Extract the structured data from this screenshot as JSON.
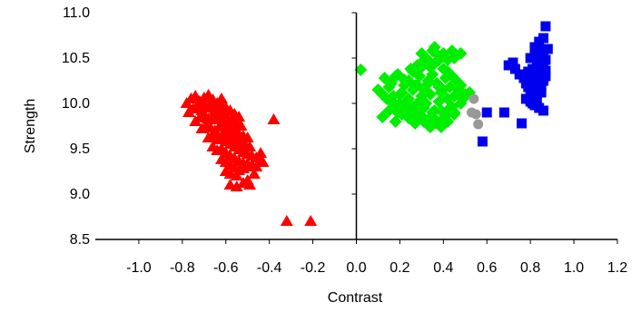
{
  "chart_data": {
    "type": "scatter",
    "title": "",
    "xlabel": "Contrast",
    "ylabel": "Strength",
    "xlim": [
      -1.2,
      1.2
    ],
    "ylim": [
      8.5,
      11.0
    ],
    "x_ticks": [
      -1.0,
      -0.8,
      -0.6,
      -0.4,
      -0.2,
      0.0,
      0.2,
      0.4,
      0.6,
      0.8,
      1.0,
      1.2
    ],
    "x_tick_labels": [
      "-1.0",
      "-0.8",
      "-0.6",
      "-0.4",
      "-0.2",
      "0.0",
      "0.2",
      "0.4",
      "0.6",
      "0.8",
      "1.0",
      "1.2"
    ],
    "y_ticks": [
      8.5,
      9.0,
      9.5,
      10.0,
      10.5,
      11.0
    ],
    "y_tick_labels": [
      "8.5",
      "9.0",
      "9.5",
      "10.0",
      "10.5",
      "11.0"
    ],
    "grid": false,
    "legend": "none",
    "series": [
      {
        "marker": "triangle",
        "color": "#ff0000",
        "x": [
          -0.78,
          -0.76,
          -0.74,
          -0.72,
          -0.7,
          -0.68,
          -0.66,
          -0.64,
          -0.62,
          -0.6,
          -0.58,
          -0.56,
          -0.54,
          -0.77,
          -0.75,
          -0.73,
          -0.71,
          -0.69,
          -0.67,
          -0.65,
          -0.63,
          -0.61,
          -0.59,
          -0.57,
          -0.55,
          -0.53,
          -0.74,
          -0.72,
          -0.7,
          -0.68,
          -0.66,
          -0.64,
          -0.62,
          -0.6,
          -0.58,
          -0.56,
          -0.54,
          -0.52,
          -0.5,
          -0.71,
          -0.69,
          -0.67,
          -0.65,
          -0.63,
          -0.61,
          -0.59,
          -0.57,
          -0.55,
          -0.53,
          -0.51,
          -0.49,
          -0.68,
          -0.66,
          -0.64,
          -0.62,
          -0.6,
          -0.58,
          -0.56,
          -0.54,
          -0.52,
          -0.5,
          -0.48,
          -0.46,
          -0.66,
          -0.64,
          -0.62,
          -0.6,
          -0.58,
          -0.56,
          -0.54,
          -0.52,
          -0.5,
          -0.48,
          -0.44,
          -0.62,
          -0.6,
          -0.58,
          -0.56,
          -0.54,
          -0.52,
          -0.5,
          -0.46,
          -0.44,
          -0.6,
          -0.58,
          -0.55,
          -0.5,
          -0.47,
          -0.43,
          -0.58,
          -0.55,
          -0.52,
          -0.49,
          -0.38,
          -0.32,
          -0.21,
          -0.62,
          -0.7,
          -0.65
        ],
        "y": [
          10.0,
          10.05,
          10.08,
          10.02,
          10.06,
          10.09,
          10.04,
          10.0,
          9.98,
          9.95,
          9.92,
          9.88,
          9.85,
          9.9,
          9.94,
          9.96,
          9.92,
          9.95,
          9.97,
          9.93,
          9.89,
          9.86,
          9.83,
          9.8,
          9.78,
          9.75,
          9.8,
          9.84,
          9.87,
          9.83,
          9.86,
          9.82,
          9.78,
          9.75,
          9.72,
          9.69,
          9.66,
          9.64,
          9.62,
          9.72,
          9.76,
          9.73,
          9.7,
          9.74,
          9.68,
          9.65,
          9.62,
          9.59,
          9.56,
          9.54,
          9.52,
          9.62,
          9.65,
          9.6,
          9.63,
          9.58,
          9.55,
          9.52,
          9.49,
          9.46,
          9.44,
          9.42,
          9.4,
          9.52,
          9.48,
          9.5,
          9.45,
          9.42,
          9.39,
          9.36,
          9.34,
          9.33,
          9.32,
          9.38,
          9.38,
          9.35,
          9.32,
          9.29,
          9.26,
          9.28,
          9.3,
          9.3,
          9.45,
          9.25,
          9.22,
          9.2,
          9.15,
          9.22,
          9.35,
          9.1,
          9.08,
          9.12,
          9.1,
          9.82,
          8.7,
          8.7,
          10.05,
          9.98,
          9.68
        ]
      },
      {
        "marker": "diamond",
        "color": "#00ee00",
        "x": [
          0.02,
          0.1,
          0.12,
          0.14,
          0.16,
          0.18,
          0.2,
          0.22,
          0.24,
          0.26,
          0.28,
          0.3,
          0.32,
          0.34,
          0.36,
          0.38,
          0.4,
          0.42,
          0.44,
          0.46,
          0.48,
          0.13,
          0.15,
          0.17,
          0.19,
          0.21,
          0.23,
          0.25,
          0.27,
          0.29,
          0.31,
          0.33,
          0.35,
          0.37,
          0.39,
          0.41,
          0.43,
          0.45,
          0.47,
          0.49,
          0.18,
          0.2,
          0.22,
          0.24,
          0.26,
          0.28,
          0.3,
          0.32,
          0.34,
          0.36,
          0.38,
          0.4,
          0.42,
          0.44,
          0.46,
          0.23,
          0.25,
          0.27,
          0.29,
          0.31,
          0.33,
          0.35,
          0.37,
          0.39,
          0.41,
          0.43,
          0.45,
          0.12,
          0.15,
          0.18,
          0.21,
          0.24,
          0.27,
          0.3,
          0.33,
          0.36,
          0.39,
          0.42,
          0.45,
          0.48,
          0.16,
          0.19,
          0.22,
          0.25,
          0.28,
          0.31,
          0.34,
          0.37,
          0.4,
          0.43,
          0.22,
          0.26,
          0.3,
          0.34,
          0.38,
          0.42,
          0.3,
          0.35,
          0.4,
          0.45,
          0.28,
          0.33,
          0.38,
          0.5,
          0.36,
          0.4,
          0.44,
          0.48,
          0.52
        ],
        "y": [
          10.37,
          10.15,
          10.1,
          10.05,
          10.22,
          10.3,
          10.0,
          9.95,
          10.25,
          10.35,
          10.42,
          10.45,
          10.5,
          10.4,
          10.44,
          10.48,
          10.38,
          10.35,
          10.3,
          10.25,
          10.2,
          10.28,
          10.18,
          10.08,
          10.32,
          10.12,
          10.02,
          10.38,
          10.2,
          10.3,
          10.15,
          10.25,
          10.32,
          10.22,
          10.12,
          10.28,
          10.18,
          10.08,
          10.15,
          10.05,
          9.98,
          10.1,
          10.2,
          10.05,
          10.15,
          10.0,
          10.08,
          10.0,
          10.1,
          9.92,
          10.02,
          10.15,
          10.05,
          9.96,
          10.1,
          9.88,
          9.95,
          9.9,
          9.85,
          9.95,
          9.82,
          9.9,
          9.8,
          9.92,
          9.86,
          9.95,
          9.9,
          9.85,
          9.92,
          9.8,
          9.88,
          9.84,
          9.78,
          9.86,
          9.76,
          9.82,
          9.74,
          9.8,
          9.88,
          10.0,
          10.02,
          9.9,
          9.94,
          9.92,
          9.88,
          9.8,
          9.74,
          9.78,
          9.84,
          9.92,
          10.26,
          10.35,
          10.4,
          10.45,
          10.52,
          10.48,
          10.55,
          10.58,
          10.52,
          10.5,
          10.2,
          10.22,
          10.18,
          10.1,
          10.62,
          10.55,
          10.58,
          10.55,
          10.12
        ]
      },
      {
        "marker": "circle",
        "color": "#999999",
        "x": [
          0.54,
          0.53,
          0.55,
          0.56
        ],
        "y": [
          10.05,
          9.9,
          9.88,
          9.77
        ]
      },
      {
        "marker": "square",
        "color": "#0000ee",
        "x": [
          0.58,
          0.6,
          0.68,
          0.72,
          0.76,
          0.7,
          0.73,
          0.75,
          0.77,
          0.78,
          0.79,
          0.8,
          0.81,
          0.82,
          0.83,
          0.84,
          0.85,
          0.86,
          0.87,
          0.78,
          0.8,
          0.82,
          0.84,
          0.86,
          0.79,
          0.81,
          0.83,
          0.85,
          0.87,
          0.8,
          0.82,
          0.84,
          0.86,
          0.88,
          0.79,
          0.81,
          0.83,
          0.85,
          0.8,
          0.82,
          0.84,
          0.86,
          0.81,
          0.83,
          0.85,
          0.87,
          0.82,
          0.84,
          0.86,
          0.83,
          0.85,
          0.87
        ],
        "y": [
          9.58,
          9.9,
          9.9,
          10.45,
          9.78,
          10.42,
          10.38,
          10.32,
          10.28,
          10.22,
          10.18,
          10.15,
          10.12,
          10.08,
          10.1,
          10.14,
          10.18,
          10.25,
          10.3,
          10.05,
          10.02,
          9.98,
          9.95,
          9.92,
          10.35,
          10.38,
          10.42,
          10.45,
          10.48,
          10.5,
          10.52,
          10.55,
          10.58,
          10.6,
          10.26,
          10.2,
          10.16,
          10.12,
          10.3,
          10.34,
          10.4,
          10.46,
          10.0,
          10.06,
          10.24,
          10.36,
          10.62,
          10.68,
          10.72,
          10.28,
          10.32,
          10.85
        ]
      }
    ]
  }
}
